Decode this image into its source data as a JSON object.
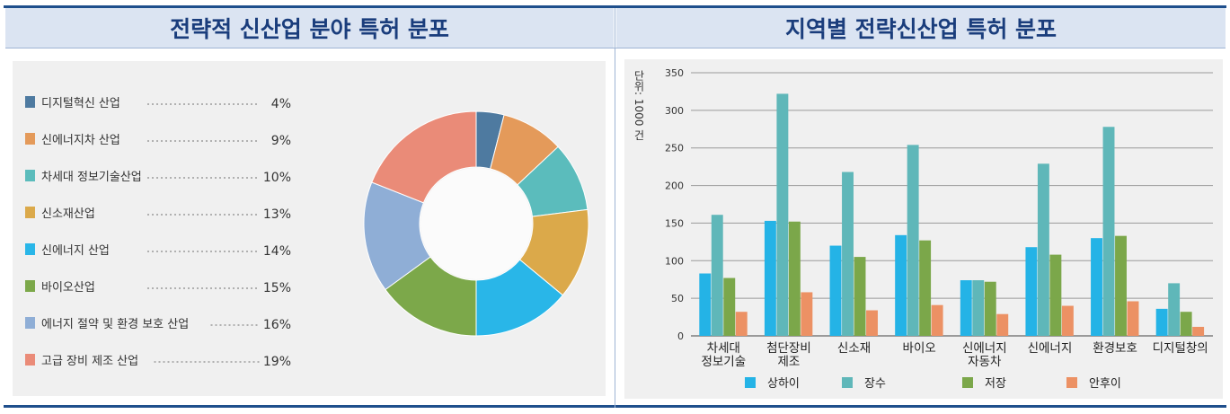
{
  "header": {
    "left_title": "전략적 신산업 분야 특허 분포",
    "right_title": "지역별 전략신산업 특허 분포"
  },
  "chart_data": [
    {
      "type": "pie",
      "title": "전략적 신산업 분야 특허 분포",
      "donut": true,
      "legend_placement": "left",
      "slices": [
        {
          "label": "디지털혁신 산업",
          "value": 4,
          "value_label": "4%",
          "color": "#4e7aa0"
        },
        {
          "label": "신에너지차 산업",
          "value": 9,
          "value_label": "9%",
          "color": "#e49a5a"
        },
        {
          "label": "차세대 정보기술산업",
          "value": 10,
          "value_label": "10%",
          "color": "#5bbcbc"
        },
        {
          "label": "신소재산업",
          "value": 13,
          "value_label": "13%",
          "color": "#dba94a"
        },
        {
          "label": "신에너지 산업",
          "value": 14,
          "value_label": "14%",
          "color": "#29b6e8"
        },
        {
          "label": "바이오산업",
          "value": 15,
          "value_label": "15%",
          "color": "#7ca84a"
        },
        {
          "label": "에너지 절약 및 환경 보호 산업",
          "value": 16,
          "value_label": "16%",
          "color": "#8faed6"
        },
        {
          "label": "고급 장비 제조 산업",
          "value": 19,
          "value_label": "19%",
          "color": "#ea8b78"
        }
      ]
    },
    {
      "type": "bar",
      "title": "지역별 전략신산업 특허 분포",
      "ylabel": "단위: 1000 건",
      "ylim": [
        0,
        350
      ],
      "yticks": [
        0,
        50,
        100,
        150,
        200,
        250,
        300,
        350
      ],
      "grid": true,
      "legend_placement": "bottom",
      "categories": [
        "차세대\n정보기술",
        "첨단장비\n제조",
        "신소재",
        "바이오",
        "신에너지\n자동차",
        "신에너지",
        "환경보호",
        "디지털창의"
      ],
      "series": [
        {
          "name": "상하이",
          "color": "#24b3e6",
          "values": [
            83,
            153,
            120,
            134,
            74,
            118,
            130,
            36
          ]
        },
        {
          "name": "장수",
          "color": "#5fb7b9",
          "values": [
            161,
            322,
            218,
            254,
            74,
            229,
            278,
            70
          ]
        },
        {
          "name": "저장",
          "color": "#7ba74a",
          "values": [
            77,
            152,
            105,
            127,
            72,
            108,
            133,
            32
          ]
        },
        {
          "name": "안후이",
          "color": "#ec9164",
          "values": [
            32,
            58,
            34,
            41,
            29,
            40,
            46,
            12
          ]
        }
      ]
    }
  ]
}
